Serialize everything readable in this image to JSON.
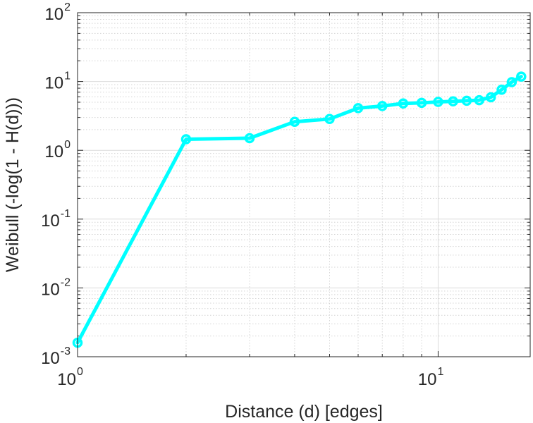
{
  "chart_data": {
    "type": "line",
    "xlabel": "Distance (d) [edges]",
    "ylabel": "Weibull (-log(1 - H(d)))",
    "xscale": "log",
    "yscale": "log",
    "xlim": [
      1,
      18
    ],
    "ylim": [
      0.001,
      100
    ],
    "grid": true,
    "minor_grid": true,
    "line_color": "#00ffff",
    "x_ticks": [
      {
        "base": "10",
        "exp": "0",
        "value": 1
      },
      {
        "base": "10",
        "exp": "1",
        "value": 10
      }
    ],
    "y_ticks": [
      {
        "base": "10",
        "exp": "-3",
        "value": 0.001
      },
      {
        "base": "10",
        "exp": "-2",
        "value": 0.01
      },
      {
        "base": "10",
        "exp": "-1",
        "value": 0.1
      },
      {
        "base": "10",
        "exp": "0",
        "value": 1
      },
      {
        "base": "10",
        "exp": "1",
        "value": 10
      },
      {
        "base": "10",
        "exp": "2",
        "value": 100
      }
    ],
    "series": [
      {
        "x": [
          1,
          2,
          3,
          4,
          5,
          6,
          7,
          8,
          9,
          10,
          11,
          12,
          13,
          14,
          15,
          16,
          17
        ],
        "y": [
          0.0016,
          1.45,
          1.5,
          2.6,
          2.85,
          4.1,
          4.4,
          4.8,
          4.9,
          5.05,
          5.15,
          5.25,
          5.35,
          5.9,
          7.6,
          9.8,
          11.8
        ]
      }
    ]
  }
}
